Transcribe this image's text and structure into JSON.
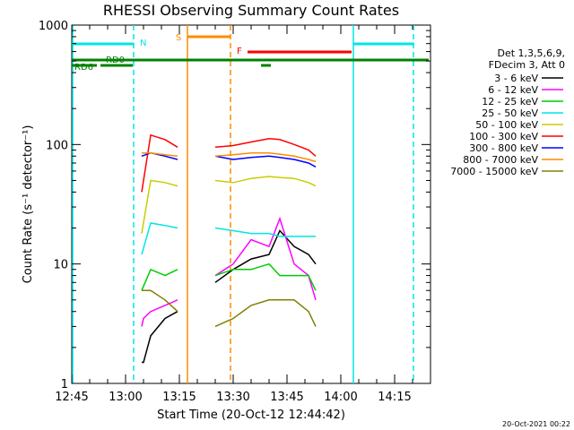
{
  "chart_data": {
    "type": "line",
    "title": "RHESSI Observing Summary Count Rates",
    "xlabel": "Start Time (20-Oct-12 12:44:42)",
    "ylabel": "Count Rate (s⁻¹ detector⁻¹)",
    "yscale": "log",
    "ylim": [
      1,
      1000
    ],
    "xlim_minutes": [
      0,
      100
    ],
    "x_ticks": [
      {
        "t": 0,
        "label": "12:45"
      },
      {
        "t": 15,
        "label": "13:00"
      },
      {
        "t": 30,
        "label": "13:15"
      },
      {
        "t": 45,
        "label": "13:30"
      },
      {
        "t": 60,
        "label": "13:45"
      },
      {
        "t": 75,
        "label": "14:00"
      },
      {
        "t": 90,
        "label": "14:15"
      }
    ],
    "y_ticks": [
      {
        "v": 1,
        "label": "1"
      },
      {
        "v": 10,
        "label": "10"
      },
      {
        "v": 100,
        "label": "100"
      },
      {
        "v": 1000,
        "label": "1000"
      }
    ],
    "legend": {
      "placement": "right",
      "header": [
        "Det 1,3,5,6,9,",
        "FDecim 3, Att 0"
      ]
    },
    "series": [
      {
        "name": "3 - 6 keV",
        "color": "#000000",
        "points": [
          [
            19.5,
            1.5
          ],
          [
            20,
            1.5
          ],
          [
            22,
            2.5
          ],
          [
            26,
            3.5
          ],
          [
            29.5,
            4
          ],
          [
            40,
            7
          ],
          [
            45,
            9
          ],
          [
            50,
            11
          ],
          [
            55,
            12
          ],
          [
            58,
            19
          ],
          [
            62,
            14
          ],
          [
            66,
            12
          ],
          [
            68,
            10
          ]
        ]
      },
      {
        "name": "6 - 12 keV",
        "color": "#ff00ff",
        "points": [
          [
            19.5,
            3
          ],
          [
            20,
            3.5
          ],
          [
            22,
            4
          ],
          [
            26,
            4.5
          ],
          [
            29.5,
            5
          ],
          [
            40,
            8
          ],
          [
            45,
            10
          ],
          [
            50,
            16
          ],
          [
            55,
            14
          ],
          [
            58,
            24
          ],
          [
            62,
            10
          ],
          [
            66,
            8
          ],
          [
            68,
            5
          ]
        ]
      },
      {
        "name": "12 - 25 keV",
        "color": "#00cc00",
        "points": [
          [
            19.5,
            6
          ],
          [
            22,
            9
          ],
          [
            26,
            8
          ],
          [
            29.5,
            9
          ],
          [
            40,
            8
          ],
          [
            45,
            9
          ],
          [
            50,
            9
          ],
          [
            55,
            10
          ],
          [
            58,
            8
          ],
          [
            62,
            8
          ],
          [
            66,
            8
          ],
          [
            68,
            6
          ]
        ]
      },
      {
        "name": "25 - 50 keV",
        "color": "#00e5e5",
        "points": [
          [
            19.5,
            12
          ],
          [
            22,
            22
          ],
          [
            26,
            21
          ],
          [
            29.5,
            20
          ],
          [
            40,
            20
          ],
          [
            45,
            19
          ],
          [
            50,
            18
          ],
          [
            55,
            18
          ],
          [
            58,
            17
          ],
          [
            62,
            17
          ],
          [
            66,
            17
          ],
          [
            68,
            17
          ]
        ]
      },
      {
        "name": "50 - 100 keV",
        "color": "#cccc00",
        "points": [
          [
            19.5,
            18
          ],
          [
            22,
            50
          ],
          [
            26,
            48
          ],
          [
            29.5,
            45
          ],
          [
            40,
            50
          ],
          [
            45,
            48
          ],
          [
            50,
            52
          ],
          [
            55,
            54
          ],
          [
            58,
            53
          ],
          [
            62,
            52
          ],
          [
            66,
            48
          ],
          [
            68,
            45
          ]
        ]
      },
      {
        "name": "100 - 300 keV",
        "color": "#ff0000",
        "points": [
          [
            19.5,
            40
          ],
          [
            22,
            120
          ],
          [
            26,
            110
          ],
          [
            29.5,
            95
          ],
          [
            40,
            95
          ],
          [
            45,
            98
          ],
          [
            50,
            105
          ],
          [
            55,
            112
          ],
          [
            58,
            110
          ],
          [
            62,
            100
          ],
          [
            66,
            90
          ],
          [
            68,
            80
          ]
        ]
      },
      {
        "name": "300 - 800 keV",
        "color": "#0000ff",
        "points": [
          [
            19.5,
            80
          ],
          [
            22,
            85
          ],
          [
            26,
            80
          ],
          [
            29.5,
            75
          ],
          [
            40,
            80
          ],
          [
            45,
            75
          ],
          [
            50,
            78
          ],
          [
            55,
            80
          ],
          [
            58,
            78
          ],
          [
            62,
            75
          ],
          [
            66,
            70
          ],
          [
            68,
            65
          ]
        ]
      },
      {
        "name": "800 - 7000 keV",
        "color": "#ff8c00",
        "points": [
          [
            19.5,
            85
          ],
          [
            22,
            85
          ],
          [
            26,
            82
          ],
          [
            29.5,
            80
          ],
          [
            40,
            80
          ],
          [
            45,
            82
          ],
          [
            50,
            85
          ],
          [
            55,
            85
          ],
          [
            58,
            83
          ],
          [
            62,
            80
          ],
          [
            66,
            75
          ],
          [
            68,
            72
          ]
        ]
      },
      {
        "name": "7000 - 15000 keV",
        "color": "#808000",
        "points": [
          [
            19.5,
            6
          ],
          [
            22,
            6
          ],
          [
            26,
            5
          ],
          [
            29.5,
            4
          ],
          [
            40,
            3
          ],
          [
            45,
            3.5
          ],
          [
            50,
            4.5
          ],
          [
            55,
            5
          ],
          [
            58,
            5
          ],
          [
            62,
            5
          ],
          [
            66,
            4
          ],
          [
            68,
            3
          ]
        ]
      }
    ],
    "annotations": {
      "N": {
        "label": "N",
        "color": "#00e5e5"
      },
      "S": {
        "label": "S",
        "color": "#ff8c00"
      },
      "F": {
        "label": "F",
        "color": "#ff0000"
      },
      "RD0": {
        "label": "RD0",
        "color": "#008000"
      },
      "RD6": {
        "label": "RD6",
        "color": "#008000"
      }
    }
  },
  "footer_timestamp": "20-Oct-2021 00:22"
}
